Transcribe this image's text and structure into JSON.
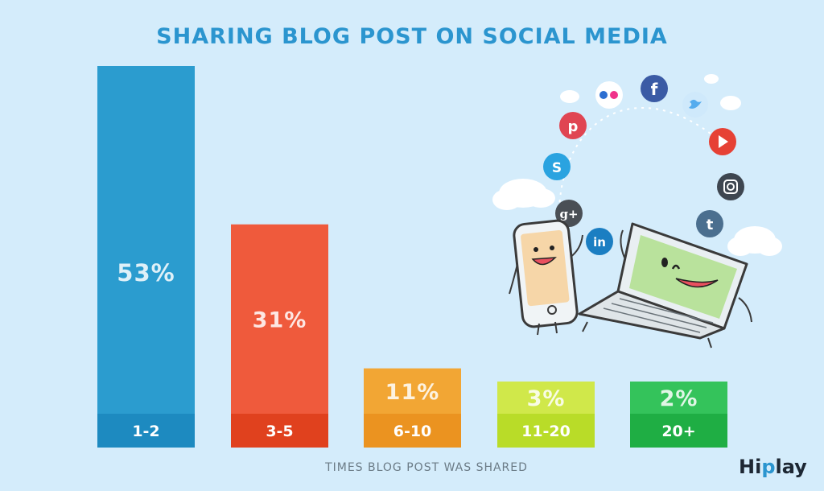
{
  "chart_data": {
    "type": "bar",
    "title": "SHARING BLOG POST ON SOCIAL MEDIA",
    "xlabel": "TIMES BLOG POST WAS SHARED",
    "ylabel": "",
    "categories": [
      "1-2",
      "3-5",
      "6-10",
      "11-20",
      "20+"
    ],
    "values": [
      53,
      31,
      11,
      3,
      2
    ],
    "value_labels": [
      "53%",
      "31%",
      "11%",
      "3%",
      "2%"
    ],
    "ylim": [
      0,
      60
    ],
    "grid": false,
    "colors": [
      "#2b9ccf",
      "#ef5a3c",
      "#f2a634",
      "#d0e84a",
      "#34c35b"
    ],
    "band_colors": [
      "#1d8ac0",
      "#e0411e",
      "#eb9320",
      "#b9dc28",
      "#1fae44"
    ]
  },
  "brand": {
    "name_part1": "Hi",
    "name_part2": "p",
    "name_part3": "lay"
  },
  "illustration": {
    "icons": [
      "flickr-icon",
      "facebook-icon",
      "twitter-icon",
      "pinterest-icon",
      "youtube-icon",
      "skype-icon",
      "instagram-icon",
      "google-plus-icon",
      "tumblr-icon",
      "linkedin-icon"
    ],
    "icon_letters": {
      "facebook": "f",
      "pinterest": "p",
      "skype": "S",
      "google_plus": "g+",
      "linkedin": "in",
      "tumblr": "t"
    }
  }
}
